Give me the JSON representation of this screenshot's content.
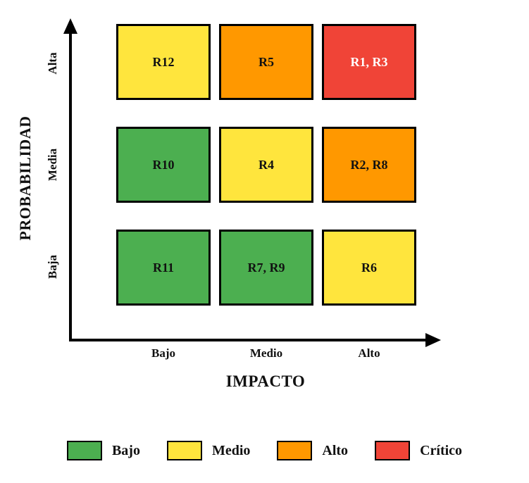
{
  "chart_data": {
    "type": "heatmap",
    "title": "",
    "xlabel": "IMPACTO",
    "ylabel": "PROBABILIDAD",
    "x_categories": [
      "Bajo",
      "Medio",
      "Alto"
    ],
    "y_categories": [
      "Alta",
      "Media",
      "Baja"
    ],
    "grid": false,
    "legend_position": "bottom",
    "axis_color": "#000000",
    "cells": [
      {
        "row": "Alta",
        "col": "Bajo",
        "label": "R12",
        "level": "Medio",
        "color": "#FFE53D",
        "text_color": "#111111"
      },
      {
        "row": "Alta",
        "col": "Medio",
        "label": "R5",
        "level": "Alto",
        "color": "#FF9800",
        "text_color": "#111111"
      },
      {
        "row": "Alta",
        "col": "Alto",
        "label": "R1, R3",
        "level": "Crítico",
        "color": "#F04437",
        "text_color": "#ffffff"
      },
      {
        "row": "Media",
        "col": "Bajo",
        "label": "R10",
        "level": "Bajo",
        "color": "#4CAF50",
        "text_color": "#111111"
      },
      {
        "row": "Media",
        "col": "Medio",
        "label": "R4",
        "level": "Medio",
        "color": "#FFE53D",
        "text_color": "#111111"
      },
      {
        "row": "Media",
        "col": "Alto",
        "label": "R2, R8",
        "level": "Alto",
        "color": "#FF9800",
        "text_color": "#111111"
      },
      {
        "row": "Baja",
        "col": "Bajo",
        "label": "R11",
        "level": "Bajo",
        "color": "#4CAF50",
        "text_color": "#111111"
      },
      {
        "row": "Baja",
        "col": "Medio",
        "label": "R7, R9",
        "level": "Bajo",
        "color": "#4CAF50",
        "text_color": "#111111"
      },
      {
        "row": "Baja",
        "col": "Alto",
        "label": "R6",
        "level": "Medio",
        "color": "#FFE53D",
        "text_color": "#111111"
      }
    ],
    "legend": [
      {
        "label": "Bajo",
        "color": "#4CAF50"
      },
      {
        "label": "Medio",
        "color": "#FFE53D"
      },
      {
        "label": "Alto",
        "color": "#FF9800"
      },
      {
        "label": "Crítico",
        "color": "#F04437"
      }
    ]
  }
}
